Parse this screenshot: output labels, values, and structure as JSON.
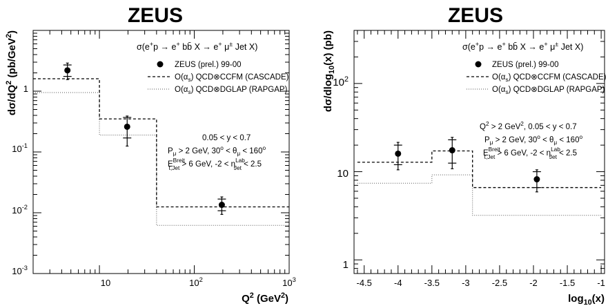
{
  "chart_data": [
    {
      "type": "scatter",
      "title": "ZEUS",
      "xlabel": "Q² (GeV²)",
      "ylabel": "dσ/dQ² (pb/GeV²)",
      "xscale": "log",
      "yscale": "log",
      "xlim": [
        2,
        1000
      ],
      "ylim": [
        0.001,
        10
      ],
      "x_tick_labels": [
        "10",
        "10²",
        "10³"
      ],
      "y_tick_labels": [
        "10⁻³",
        "10⁻²",
        "10⁻¹",
        "1"
      ],
      "process_label": "σ(e⁺p → e⁺ bb̄ X → e⁺ μ± Jet X)",
      "legend_position": "top-right",
      "cuts": [
        "0.05 < y < 0.7",
        "Pμ > 2 GeV, 30° < θμ < 160°",
        "E_t,Jet^Breit > 6 GeV, -2 < η_Jet^Lab < 2.5"
      ],
      "series": [
        {
          "name": "ZEUS (prel.) 99-00",
          "kind": "points",
          "x": [
            4.6,
            19.6,
            195
          ],
          "y": [
            2.2,
            0.26,
            0.0135
          ],
          "y_stat_low": [
            1.75,
            0.17,
            0.0108
          ],
          "y_stat_high": [
            2.7,
            0.37,
            0.0168
          ],
          "y_tot_low": [
            1.55,
            0.125,
            0.0094
          ],
          "y_tot_high": [
            2.9,
            0.39,
            0.0182
          ]
        },
        {
          "name": "O(αs) QCD⊗CCFM (CASCADE)",
          "kind": "step",
          "style": "dashed",
          "bin_edges": [
            2,
            10,
            40,
            1000
          ],
          "values": [
            1.6,
            0.35,
            0.0125
          ]
        },
        {
          "name": "O(αs) QCD⊗DGLAP (RAPGAP)",
          "kind": "step",
          "style": "dotted",
          "bin_edges": [
            2,
            10,
            40,
            1000
          ],
          "values": [
            0.95,
            0.19,
            0.0062
          ]
        }
      ]
    },
    {
      "type": "scatter",
      "title": "ZEUS",
      "xlabel": "log₁₀(x)",
      "ylabel": "dσ/dlog₁₀(x) (pb)",
      "xscale": "linear",
      "yscale": "log",
      "xlim": [
        -4.65,
        -0.95
      ],
      "ylim": [
        0.7,
        400
      ],
      "x_tick_labels": [
        "-4.5",
        "-4",
        "-3.5",
        "-3",
        "-2.5",
        "-2",
        "-1.5",
        "-1"
      ],
      "y_tick_labels": [
        "1",
        "10",
        "10²"
      ],
      "process_label": "σ(e⁺p → e⁺ bb̄ X → e⁺ μ± Jet X)",
      "legend_position": "top-right",
      "cuts": [
        "Q² > 2 GeV², 0.05 < y < 0.7",
        "Pμ > 2 GeV, 30° < θμ < 160°",
        "E_t,Jet^Breit > 6 GeV, -2 < η_Jet^Lab < 2.5"
      ],
      "series": [
        {
          "name": "ZEUS (prel.) 99-00",
          "kind": "points",
          "x": [
            -4.0,
            -3.2,
            -1.95
          ],
          "y": [
            16,
            17.5,
            8.2
          ],
          "y_stat_low": [
            12,
            12.5,
            6.6
          ],
          "y_stat_high": [
            20,
            23,
            10
          ],
          "y_tot_low": [
            10.5,
            10.8,
            5.9
          ],
          "y_tot_high": [
            21.5,
            24.5,
            10.5
          ]
        },
        {
          "name": "O(αs) QCD⊗CCFM (CASCADE)",
          "kind": "step",
          "style": "dashed",
          "bin_edges": [
            -4.6,
            -3.5,
            -2.9,
            -1.0
          ],
          "values": [
            12.8,
            17.2,
            6.6
          ]
        },
        {
          "name": "O(αs) QCD⊗DGLAP (RAPGAP)",
          "kind": "step",
          "style": "dotted",
          "bin_edges": [
            -4.6,
            -3.5,
            -2.9,
            -1.0
          ],
          "values": [
            7.4,
            9.2,
            3.2
          ]
        }
      ]
    }
  ]
}
